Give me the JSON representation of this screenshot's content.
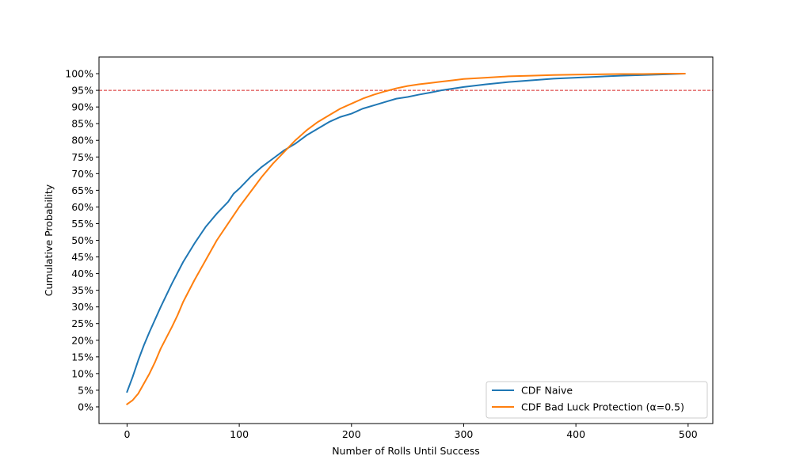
{
  "chart_data": {
    "type": "line",
    "title": "",
    "xlabel": "Number of Rolls Until Success",
    "ylabel": "Cumulative Probability",
    "xlim": [
      -25,
      522
    ],
    "ylim": [
      -0.05,
      1.05
    ],
    "xticks": [
      0,
      100,
      200,
      300,
      400,
      500
    ],
    "xtick_labels": [
      "0",
      "100",
      "200",
      "300",
      "400",
      "500"
    ],
    "yticks": [
      0,
      0.05,
      0.1,
      0.15,
      0.2,
      0.25,
      0.3,
      0.35,
      0.4,
      0.45,
      0.5,
      0.55,
      0.6,
      0.65,
      0.7,
      0.75,
      0.8,
      0.85,
      0.9,
      0.95,
      1.0
    ],
    "ytick_labels": [
      "0%",
      "5%",
      "10%",
      "15%",
      "20%",
      "25%",
      "30%",
      "35%",
      "40%",
      "45%",
      "50%",
      "55%",
      "60%",
      "65%",
      "70%",
      "75%",
      "80%",
      "85%",
      "90%",
      "95%",
      "100%"
    ],
    "grid": false,
    "legend_position": "lower-right",
    "reference_lines": [
      {
        "axis": "y",
        "value": 0.95,
        "color": "#d62728",
        "style": "dashed"
      }
    ],
    "series": [
      {
        "name": "CDF Naive",
        "color": "#1f77b4",
        "x": [
          0,
          5,
          10,
          15,
          20,
          30,
          40,
          50,
          60,
          70,
          75,
          80,
          90,
          95,
          100,
          110,
          120,
          130,
          140,
          150,
          160,
          170,
          180,
          190,
          200,
          210,
          220,
          230,
          240,
          250,
          260,
          270,
          280,
          290,
          300,
          320,
          340,
          360,
          380,
          400,
          420,
          440,
          460,
          480,
          497
        ],
        "y": [
          0.045,
          0.09,
          0.14,
          0.185,
          0.225,
          0.3,
          0.37,
          0.435,
          0.49,
          0.54,
          0.56,
          0.58,
          0.615,
          0.64,
          0.655,
          0.69,
          0.72,
          0.745,
          0.77,
          0.79,
          0.815,
          0.835,
          0.855,
          0.87,
          0.88,
          0.895,
          0.905,
          0.915,
          0.925,
          0.93,
          0.937,
          0.943,
          0.95,
          0.955,
          0.96,
          0.968,
          0.975,
          0.98,
          0.985,
          0.988,
          0.991,
          0.994,
          0.996,
          0.998,
          1.0
        ]
      },
      {
        "name": "CDF Bad Luck Protection (α=0.5)",
        "color": "#ff7f0e",
        "x": [
          0,
          5,
          10,
          15,
          20,
          25,
          30,
          40,
          45,
          50,
          60,
          70,
          75,
          80,
          90,
          100,
          110,
          120,
          130,
          140,
          150,
          160,
          170,
          180,
          190,
          200,
          210,
          220,
          230,
          240,
          250,
          260,
          270,
          280,
          290,
          300,
          320,
          340,
          360,
          380,
          400,
          420,
          440,
          460,
          480,
          497
        ],
        "y": [
          0.008,
          0.02,
          0.04,
          0.07,
          0.1,
          0.135,
          0.175,
          0.24,
          0.275,
          0.315,
          0.38,
          0.44,
          0.47,
          0.5,
          0.55,
          0.6,
          0.645,
          0.69,
          0.73,
          0.765,
          0.8,
          0.83,
          0.855,
          0.875,
          0.895,
          0.91,
          0.925,
          0.937,
          0.947,
          0.956,
          0.963,
          0.968,
          0.972,
          0.976,
          0.98,
          0.984,
          0.988,
          0.992,
          0.994,
          0.996,
          0.997,
          0.998,
          0.999,
          0.999,
          1.0,
          1.0
        ]
      }
    ]
  }
}
